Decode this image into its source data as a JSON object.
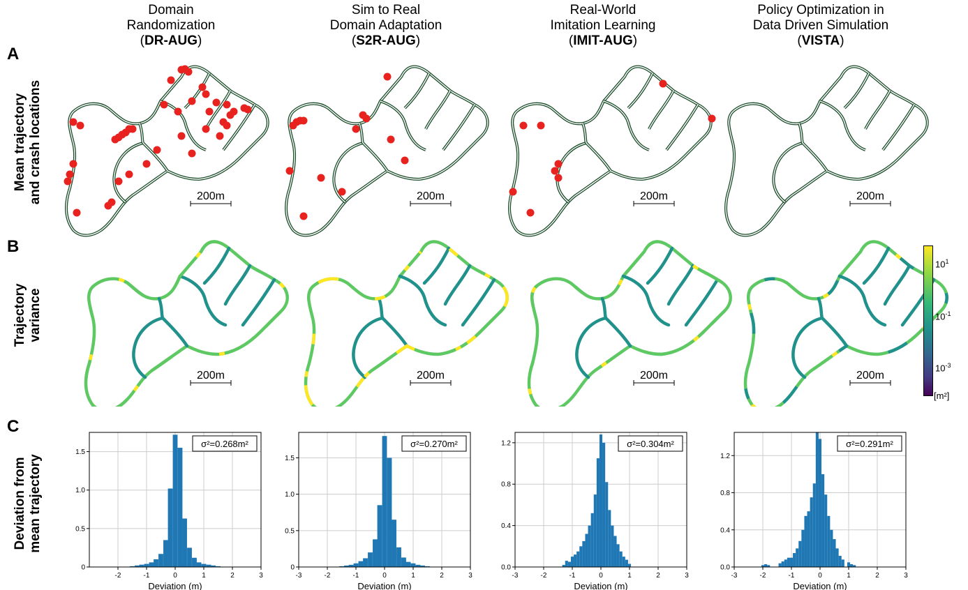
{
  "columns": [
    {
      "line1": "Domain",
      "line2": "Randomization",
      "code": "DR-AUG"
    },
    {
      "line1": "Sim to Real",
      "line2": "Domain Adaptation",
      "code": "S2R-AUG"
    },
    {
      "line1": "Real-World",
      "line2": "Imitation Learning",
      "code": "IMIT-AUG"
    },
    {
      "line1": "Policy Optimization in",
      "line2": "Data Driven Simulation",
      "code": "VISTA"
    }
  ],
  "rows": [
    {
      "letter": "A",
      "line1": "Mean trajectory",
      "line2": "and crash locations"
    },
    {
      "letter": "B",
      "line1": "Trajectory",
      "line2": "variance"
    },
    {
      "letter": "C",
      "line1": "Deviation from",
      "line2": "mean trajectory"
    }
  ],
  "scale_bar": "200m",
  "colorbar": {
    "ticks": [
      "10",
      "10",
      "10",
      "10"
    ],
    "exponents": [
      "1",
      "-1",
      "-3",
      ""
    ],
    "unit": "[m²]",
    "colors": [
      "#fde725",
      "#5ec962",
      "#21918c",
      "#3b528b",
      "#440154"
    ]
  },
  "crash_color": "#e8221f",
  "track_color": "#1b4d2a",
  "chart_data": [
    {
      "type": "bar",
      "title": "DR-AUG",
      "xlabel": "Deviation (m)",
      "annotation": "σ²=0.268m²",
      "xlim": [
        -3,
        3
      ],
      "ylim": [
        0,
        1.75
      ],
      "xticks": [
        "-2",
        "-1",
        "0",
        "1",
        "2",
        "3"
      ],
      "xtick_values": [
        -2,
        -1,
        0,
        1,
        2,
        3
      ],
      "yticks": [
        "0",
        "0.5",
        "1.0",
        "1.5"
      ],
      "ytick_values": [
        0,
        0.5,
        1.0,
        1.5
      ],
      "bin_width": 0.167,
      "x": [
        -1.5,
        -1.33,
        -1.17,
        -1.0,
        -0.83,
        -0.67,
        -0.5,
        -0.33,
        -0.17,
        0.0,
        0.17,
        0.33,
        0.5,
        0.67,
        0.83,
        1.0,
        1.17,
        1.33,
        1.5
      ],
      "values": [
        0.01,
        0.02,
        0.03,
        0.04,
        0.06,
        0.1,
        0.17,
        0.35,
        1.02,
        1.72,
        1.55,
        0.63,
        0.25,
        0.12,
        0.06,
        0.04,
        0.03,
        0.02,
        0.01
      ]
    },
    {
      "type": "bar",
      "title": "S2R-AUG",
      "xlabel": "Deviation (m)",
      "annotation": "σ²=0.270m²",
      "xlim": [
        -3,
        3
      ],
      "ylim": [
        0,
        1.85
      ],
      "xticks": [
        "-3",
        "-2",
        "-1",
        "0",
        "1",
        "2",
        "3"
      ],
      "xtick_values": [
        -3,
        -2,
        -1,
        0,
        1,
        2,
        3
      ],
      "yticks": [
        "0",
        "0.5",
        "1.0",
        "1.5"
      ],
      "ytick_values": [
        0,
        0.5,
        1.0,
        1.5
      ],
      "bin_width": 0.167,
      "x": [
        -1.5,
        -1.33,
        -1.17,
        -1.0,
        -0.83,
        -0.67,
        -0.5,
        -0.33,
        -0.17,
        0.0,
        0.17,
        0.33,
        0.5,
        0.67,
        0.83,
        1.0,
        1.17,
        1.33,
        1.5
      ],
      "values": [
        0.01,
        0.02,
        0.03,
        0.05,
        0.08,
        0.12,
        0.2,
        0.38,
        0.85,
        1.8,
        1.5,
        0.65,
        0.27,
        0.13,
        0.07,
        0.05,
        0.03,
        0.02,
        0.01
      ]
    },
    {
      "type": "bar",
      "title": "IMIT-AUG",
      "xlabel": "Deviation (m)",
      "annotation": "σ²=0.304m²",
      "xlim": [
        -3,
        3
      ],
      "ylim": [
        0,
        1.3
      ],
      "xticks": [
        "-3",
        "-2",
        "-1",
        "0",
        "1",
        "2",
        "3"
      ],
      "xtick_values": [
        -3,
        -2,
        -1,
        0,
        1,
        2,
        3
      ],
      "yticks": [
        "0.0",
        "0.4",
        "0.8",
        "1.2"
      ],
      "ytick_values": [
        0,
        0.4,
        0.8,
        1.2
      ],
      "bin_width": 0.1,
      "x": [
        -1.3,
        -1.2,
        -1.1,
        -1.0,
        -0.9,
        -0.8,
        -0.7,
        -0.6,
        -0.5,
        -0.4,
        -0.3,
        -0.2,
        -0.1,
        0.0,
        0.1,
        0.2,
        0.3,
        0.4,
        0.5,
        0.6,
        0.7,
        0.8,
        0.9,
        1.0
      ],
      "values": [
        0.02,
        0.06,
        0.05,
        0.1,
        0.12,
        0.15,
        0.2,
        0.25,
        0.32,
        0.4,
        0.52,
        0.7,
        1.05,
        1.28,
        1.2,
        0.82,
        0.55,
        0.4,
        0.3,
        0.22,
        0.15,
        0.1,
        0.07,
        0.03
      ]
    },
    {
      "type": "bar",
      "title": "VISTA",
      "xlabel": "Deviation (m)",
      "annotation": "σ²=0.291m²",
      "xlim": [
        -3,
        3
      ],
      "ylim": [
        0,
        1.45
      ],
      "xticks": [
        "-3",
        "-2",
        "-1",
        "0",
        "1",
        "2",
        "3"
      ],
      "xtick_values": [
        -3,
        -2,
        -1,
        0,
        1,
        2,
        3
      ],
      "yticks": [
        "0.0",
        "0.4",
        "0.8",
        "1.2"
      ],
      "ytick_values": [
        0,
        0.4,
        0.8,
        1.2
      ],
      "bin_width": 0.1,
      "x": [
        -2.0,
        -1.9,
        -1.8,
        -1.4,
        -1.3,
        -1.2,
        -1.1,
        -1.0,
        -0.9,
        -0.8,
        -0.7,
        -0.6,
        -0.5,
        -0.4,
        -0.3,
        -0.2,
        -0.1,
        0.0,
        0.1,
        0.2,
        0.3,
        0.4,
        0.5,
        0.6,
        0.7,
        0.8,
        1.0,
        1.1,
        1.2
      ],
      "values": [
        0.02,
        0.03,
        0.02,
        0.04,
        0.06,
        0.08,
        0.1,
        0.1,
        0.15,
        0.2,
        0.28,
        0.4,
        0.55,
        0.6,
        0.75,
        0.9,
        1.45,
        1.38,
        1.0,
        0.78,
        0.55,
        0.4,
        0.3,
        0.2,
        0.12,
        0.08,
        0.05,
        0.03,
        0.02
      ]
    }
  ]
}
